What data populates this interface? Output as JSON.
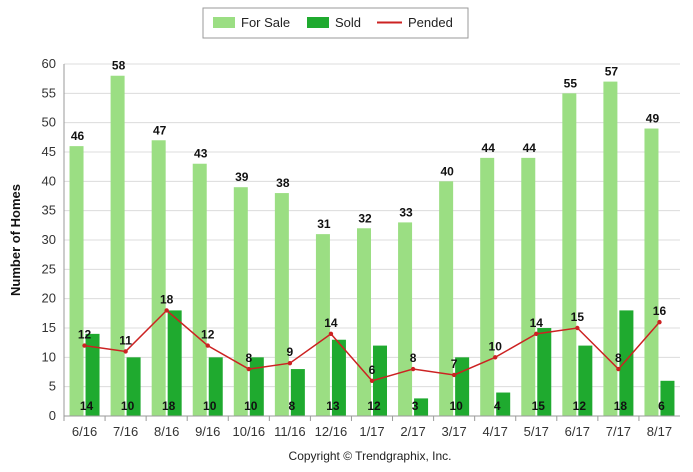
{
  "chart_data": {
    "type": "bar",
    "categories": [
      "6/16",
      "7/16",
      "8/16",
      "9/16",
      "10/16",
      "11/16",
      "12/16",
      "1/17",
      "2/17",
      "3/17",
      "4/17",
      "5/17",
      "6/17",
      "7/17",
      "8/17"
    ],
    "series": [
      {
        "name": "For Sale",
        "kind": "bar",
        "color": "#9bde83",
        "values": [
          46,
          58,
          47,
          43,
          39,
          38,
          31,
          32,
          33,
          40,
          44,
          44,
          55,
          57,
          49
        ]
      },
      {
        "name": "Sold",
        "kind": "bar",
        "color": "#1faa2f",
        "values": [
          14,
          10,
          18,
          10,
          10,
          8,
          13,
          12,
          3,
          10,
          4,
          15,
          12,
          18,
          6
        ]
      },
      {
        "name": "Pended",
        "kind": "line",
        "color": "#cc2222",
        "values": [
          12,
          11,
          18,
          12,
          8,
          9,
          14,
          6,
          8,
          7,
          10,
          14,
          15,
          8,
          16
        ]
      }
    ],
    "ylabel": "Number of Homes",
    "xlabel": "",
    "ylim": [
      0,
      60
    ],
    "yticks": [
      0,
      5,
      10,
      15,
      20,
      25,
      30,
      35,
      40,
      45,
      50,
      55,
      60
    ],
    "grid": true,
    "legend_position": "top-center",
    "footer": "Copyright © Trendgraphix, Inc."
  }
}
